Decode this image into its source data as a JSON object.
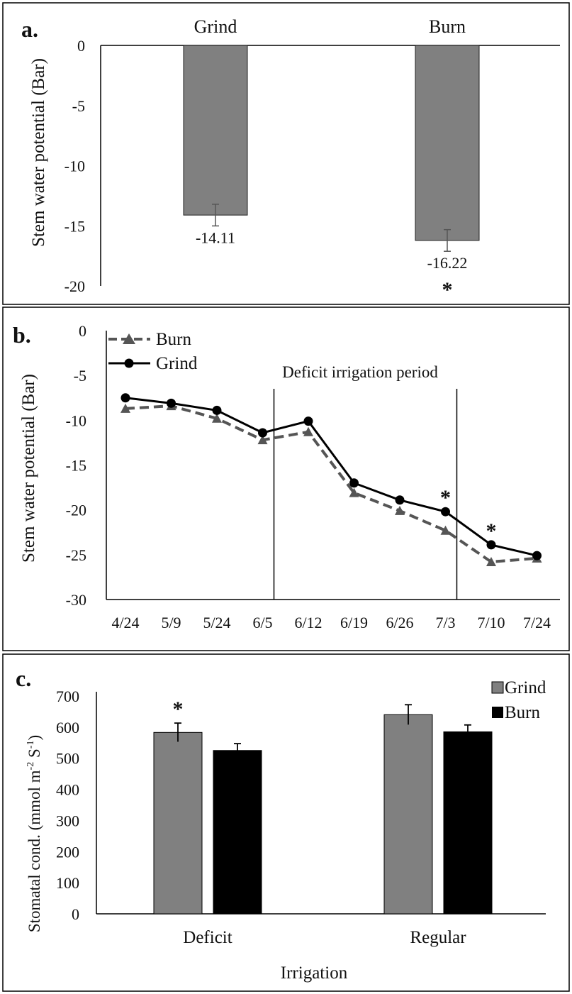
{
  "chart_data": [
    {
      "panel": "a.",
      "type": "bar",
      "categories": [
        "Grind",
        "Burn"
      ],
      "values": [
        -14.11,
        -16.22
      ],
      "errors": [
        0.9,
        0.9
      ],
      "value_labels": [
        "-14.11",
        "-16.22"
      ],
      "significance": [
        "",
        "*"
      ],
      "ylabel": "Stem water potential (Bar)",
      "ylim": [
        -20,
        0
      ],
      "yticks": [
        0,
        -5,
        -10,
        -15,
        -20
      ],
      "bar_color": "#808080"
    },
    {
      "panel": "b.",
      "type": "line",
      "x": [
        "4/24",
        "5/9",
        "5/24",
        "6/5",
        "6/12",
        "6/19",
        "6/26",
        "7/3",
        "7/10",
        "7/24"
      ],
      "series": [
        {
          "name": "Burn",
          "values": [
            -8.7,
            -8.4,
            -9.8,
            -12.2,
            -11.3,
            -18.1,
            -20.1,
            -22.3,
            -25.8,
            -25.4
          ],
          "color": "#555555",
          "dashed": true,
          "marker": "triangle"
        },
        {
          "name": "Grind",
          "values": [
            -7.5,
            -8.1,
            -8.9,
            -11.4,
            -10.1,
            -17.0,
            -18.9,
            -20.2,
            -23.9,
            -25.1
          ],
          "color": "#000000",
          "dashed": false,
          "marker": "circle"
        }
      ],
      "significance": [
        "",
        "",
        "",
        "",
        "",
        "",
        "",
        "*",
        "*",
        ""
      ],
      "annotation": "Deficit irrigation period",
      "period_bounds_after_index": [
        3,
        7
      ],
      "ylabel": "Stem water potential (Bar)",
      "ylim": [
        -30,
        0
      ],
      "yticks": [
        0,
        -5,
        -10,
        -15,
        -20,
        -25,
        -30
      ],
      "legend": "top-left"
    },
    {
      "panel": "c.",
      "type": "bar",
      "categories": [
        "Deficit",
        "Regular"
      ],
      "series": [
        {
          "name": "Grind",
          "values": [
            583,
            640
          ],
          "errors": [
            30,
            32
          ],
          "color": "#808080"
        },
        {
          "name": "Burn",
          "values": [
            525,
            585
          ],
          "errors": [
            22,
            22
          ],
          "color": "#000000"
        }
      ],
      "significance": [
        "*",
        ""
      ],
      "xlabel": "Irrigation",
      "ylabel": "Stomatal cond. (mmol m",
      "ylabel_sup1": "-2",
      "ylabel_mid": " S",
      "ylabel_sup2": "-1",
      "ylabel_end": ")",
      "ylim": [
        0,
        700
      ],
      "yticks": [
        0,
        100,
        200,
        300,
        400,
        500,
        600,
        700
      ],
      "legend": "top-right"
    }
  ]
}
